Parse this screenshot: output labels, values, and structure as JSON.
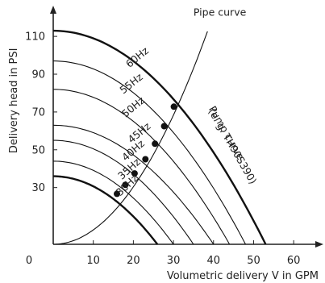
{
  "chart_data": {
    "type": "line",
    "xlabel": "Volumetric delivery V in GPM",
    "ylabel": "Delivery head in PSI",
    "xlim": [
      0,
      65
    ],
    "ylim": [
      0,
      122
    ],
    "x_ticks": [
      {
        "value": 0,
        "label": "0"
      },
      {
        "value": 10,
        "label": "10"
      },
      {
        "value": 20,
        "label": "20"
      },
      {
        "value": 30,
        "label": "30"
      },
      {
        "value": 40,
        "label": "40"
      },
      {
        "value": 50,
        "label": "50"
      },
      {
        "value": 60,
        "label": "60"
      }
    ],
    "y_ticks": [
      {
        "value": 30,
        "label": "30"
      },
      {
        "value": 50,
        "label": "50"
      },
      {
        "value": 70,
        "label": "70"
      },
      {
        "value": 90,
        "label": "90"
      },
      {
        "value": 110,
        "label": "110"
      }
    ],
    "grid": false,
    "series": [
      {
        "name": "30Hz",
        "shutoff_head": 36,
        "max_flow": 26,
        "bold": true,
        "label_at": [
          19.0,
          30.0
        ]
      },
      {
        "name": "35Hz",
        "shutoff_head": 44,
        "max_flow": 30,
        "bold": false,
        "label_at": [
          19.5,
          38.5
        ]
      },
      {
        "name": "40Hz",
        "shutoff_head": 55,
        "max_flow": 35,
        "bold": false,
        "label_at": [
          20.5,
          48.3
        ]
      },
      {
        "name": "45Hz",
        "shutoff_head": 63,
        "max_flow": 40,
        "bold": false,
        "label_at": [
          22.0,
          57.6
        ]
      },
      {
        "name": "50Hz",
        "shutoff_head": 82,
        "max_flow": 44,
        "bold": false,
        "label_at": [
          20.5,
          71.2
        ]
      },
      {
        "name": "55Hz",
        "shutoff_head": 97,
        "max_flow": 48,
        "bold": false,
        "label_at": [
          20.0,
          83.6
        ]
      },
      {
        "name": "60Hz",
        "shutoff_head": 113,
        "max_flow": 53,
        "bold": true,
        "label_at": [
          21.5,
          97.5
        ]
      }
    ],
    "pipe_curve": {
      "name": "Pipe curve",
      "coefficient": 0.076,
      "x_end": 38.5
    },
    "operating_points": [
      {
        "x": 15.9,
        "y": 26.7
      },
      {
        "x": 18.0,
        "y": 31.5
      },
      {
        "x": 20.3,
        "y": 37.5
      },
      {
        "x": 23.0,
        "y": 45.0
      },
      {
        "x": 25.4,
        "y": 53.2
      },
      {
        "x": 27.7,
        "y": 62.5
      },
      {
        "x": 30.1,
        "y": 72.8
      }
    ],
    "annotations": [
      {
        "id": "pipe",
        "text": "Pipe curve",
        "x": 35.0,
        "y": 121.0
      },
      {
        "id": "pump1",
        "text": "Pump curve",
        "x": 42.5,
        "y": 58.0
      },
      {
        "id": "pump2",
        "text": "(e. g. TH90S390)",
        "x": 44.0,
        "y": 51.0
      }
    ]
  }
}
